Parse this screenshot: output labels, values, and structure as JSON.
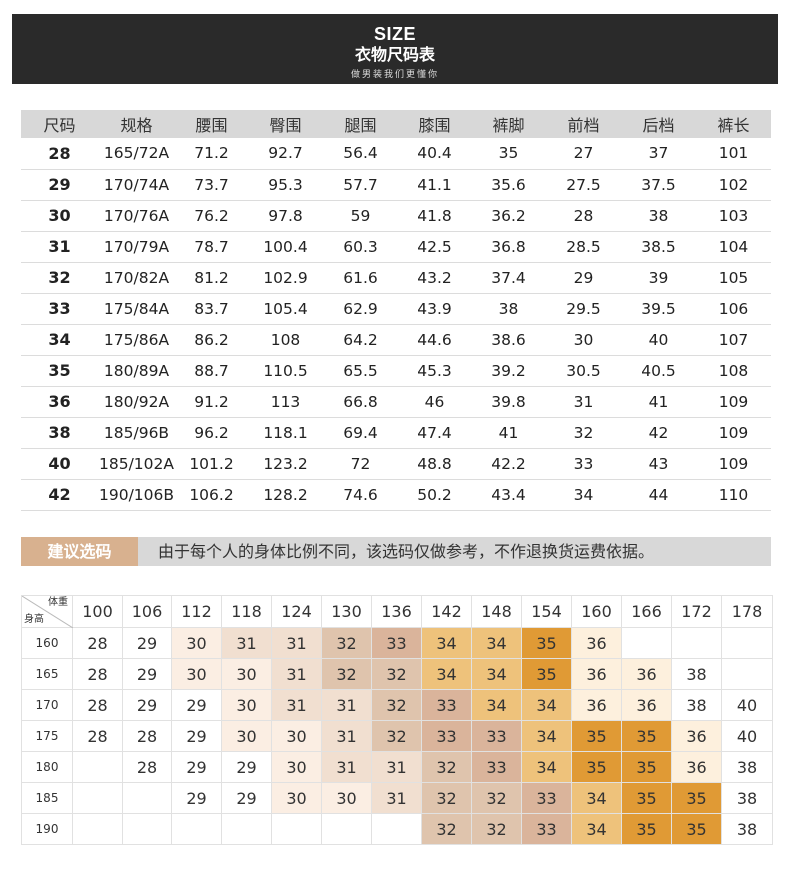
{
  "header": {
    "title_en": "SIZE",
    "title_cn": "衣物尺码表",
    "subtitle": "做男装我们更懂你"
  },
  "size_table": {
    "headers": [
      "尺码",
      "规格",
      "腰围",
      "臀围",
      "腿围",
      "膝围",
      "裤脚",
      "前档",
      "后档",
      "裤长"
    ],
    "rows": [
      [
        "28",
        "165/72A",
        "71.2",
        "92.7",
        "56.4",
        "40.4",
        "35",
        "27",
        "37",
        "101"
      ],
      [
        "29",
        "170/74A",
        "73.7",
        "95.3",
        "57.7",
        "41.1",
        "35.6",
        "27.5",
        "37.5",
        "102"
      ],
      [
        "30",
        "170/76A",
        "76.2",
        "97.8",
        "59",
        "41.8",
        "36.2",
        "28",
        "38",
        "103"
      ],
      [
        "31",
        "170/79A",
        "78.7",
        "100.4",
        "60.3",
        "42.5",
        "36.8",
        "28.5",
        "38.5",
        "104"
      ],
      [
        "32",
        "170/82A",
        "81.2",
        "102.9",
        "61.6",
        "43.2",
        "37.4",
        "29",
        "39",
        "105"
      ],
      [
        "33",
        "175/84A",
        "83.7",
        "105.4",
        "62.9",
        "43.9",
        "38",
        "29.5",
        "39.5",
        "106"
      ],
      [
        "34",
        "175/86A",
        "86.2",
        "108",
        "64.2",
        "44.6",
        "38.6",
        "30",
        "40",
        "107"
      ],
      [
        "35",
        "180/89A",
        "88.7",
        "110.5",
        "65.5",
        "45.3",
        "39.2",
        "30.5",
        "40.5",
        "108"
      ],
      [
        "36",
        "180/92A",
        "91.2",
        "113",
        "66.8",
        "46",
        "39.8",
        "31",
        "41",
        "109"
      ],
      [
        "38",
        "185/96B",
        "96.2",
        "118.1",
        "69.4",
        "47.4",
        "41",
        "32",
        "42",
        "109"
      ],
      [
        "40",
        "185/102A",
        "101.2",
        "123.2",
        "72",
        "48.8",
        "42.2",
        "33",
        "43",
        "109"
      ],
      [
        "42",
        "190/106B",
        "106.2",
        "128.2",
        "74.6",
        "50.2",
        "43.4",
        "34",
        "44",
        "110"
      ]
    ]
  },
  "advice": {
    "tag": "建议选码",
    "text": "由于每个人的身体比例不同，该选码仅做参考，不作退换货运费依据。"
  },
  "recommend": {
    "weight_label": "体重",
    "height_label": "身高",
    "weights": [
      "100",
      "106",
      "112",
      "118",
      "124",
      "130",
      "136",
      "142",
      "148",
      "154",
      "160",
      "166",
      "172",
      "178"
    ],
    "heights": [
      "160",
      "165",
      "170",
      "175",
      "180",
      "185",
      "190"
    ],
    "grid": [
      [
        "28",
        "29",
        "30",
        "31",
        "31",
        "32",
        "33",
        "34",
        "34",
        "35",
        "36",
        "",
        "",
        ""
      ],
      [
        "28",
        "29",
        "30",
        "30",
        "31",
        "32",
        "32",
        "34",
        "34",
        "35",
        "36",
        "36",
        "38",
        ""
      ],
      [
        "28",
        "29",
        "29",
        "30",
        "31",
        "31",
        "32",
        "33",
        "34",
        "34",
        "36",
        "36",
        "38",
        "40"
      ],
      [
        "28",
        "28",
        "29",
        "30",
        "30",
        "31",
        "32",
        "33",
        "33",
        "34",
        "35",
        "35",
        "36",
        "40"
      ],
      [
        "",
        "28",
        "29",
        "29",
        "30",
        "31",
        "31",
        "32",
        "33",
        "34",
        "35",
        "35",
        "36",
        "38"
      ],
      [
        "",
        "",
        "29",
        "29",
        "30",
        "30",
        "31",
        "32",
        "32",
        "33",
        "34",
        "35",
        "35",
        "38"
      ],
      [
        "",
        "",
        "",
        "",
        "",
        "",
        "",
        "32",
        "32",
        "33",
        "34",
        "35",
        "35",
        "38"
      ]
    ],
    "size_colors": {
      "28": "#ffffff",
      "29": "#ffffff",
      "30": "#fbeee3",
      "31": "#f1dfd0",
      "32": "#dfc4ad",
      "33": "#dab49b",
      "34": "#eec27b",
      "35": "#e09a35",
      "36": "#fdf0dd",
      "38": "#ffffff",
      "40": "#ffffff"
    },
    "size_colors_alt": {
      "30": "#fbeee3",
      "31": "#f1dfd0",
      "32": "#dfc4ad",
      "33": "#dab49b",
      "34": "#eec27b",
      "35": "#e09a35"
    }
  }
}
